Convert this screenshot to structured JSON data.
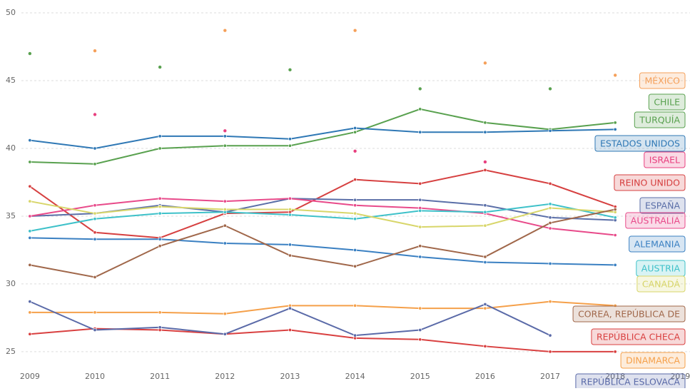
{
  "chart_data": {
    "type": "line",
    "x": [
      2009,
      2010,
      2011,
      2012,
      2013,
      2014,
      2015,
      2016,
      2017,
      2018
    ],
    "xlim": [
      2008.87,
      2019.15
    ],
    "xticks": [
      2009,
      2010,
      2011,
      2012,
      2013,
      2014,
      2015,
      2016,
      2017,
      2018,
      2019
    ],
    "ylim": [
      24.1,
      50.95
    ],
    "yticks": [
      25,
      30,
      35,
      40,
      45,
      50
    ],
    "grid": true,
    "series": [
      {
        "name": "MÉXICO",
        "color": "#f5a05a",
        "mode": "markers",
        "values": [
          null,
          47.2,
          null,
          48.7,
          null,
          48.7,
          null,
          46.3,
          null,
          45.4
        ]
      },
      {
        "name": "CHILE",
        "color": "#59a14f",
        "mode": "markers",
        "values": [
          47.0,
          null,
          46.0,
          null,
          45.8,
          null,
          44.4,
          null,
          44.4,
          null
        ]
      },
      {
        "name": "TURQUÍA",
        "color": "#59a14f",
        "mode": "lines",
        "values": [
          39.0,
          38.85,
          40.0,
          40.2,
          40.2,
          41.2,
          42.9,
          41.9,
          41.4,
          41.9
        ]
      },
      {
        "name": "ESTADOS UNIDOS",
        "color": "#2f78b5",
        "mode": "lines",
        "values": [
          40.6,
          40.0,
          40.9,
          40.9,
          40.7,
          41.5,
          41.2,
          41.2,
          41.3,
          41.4
        ]
      },
      {
        "name": "ISRAEL",
        "color": "#e8407f",
        "mode": "markers",
        "values": [
          null,
          42.5,
          null,
          41.3,
          null,
          39.8,
          null,
          39.0,
          null,
          null
        ]
      },
      {
        "name": "REINO UNIDO",
        "color": "#d64040",
        "mode": "lines",
        "values": [
          37.2,
          33.8,
          33.4,
          35.2,
          35.3,
          37.7,
          37.4,
          38.4,
          37.4,
          35.7
        ]
      },
      {
        "name": "ESPAÑA",
        "color": "#5b6fa8",
        "mode": "lines",
        "values": [
          35.0,
          35.2,
          35.8,
          35.3,
          36.3,
          36.2,
          36.2,
          35.8,
          34.9,
          34.7
        ]
      },
      {
        "name": "AUSTRALIA",
        "color": "#e84a8a",
        "mode": "lines",
        "values": [
          35.0,
          35.8,
          36.3,
          36.1,
          36.3,
          35.8,
          35.6,
          35.2,
          34.1,
          33.6
        ]
      },
      {
        "name": "ALEMANIA",
        "color": "#3a80c2",
        "mode": "lines",
        "values": [
          33.4,
          33.3,
          33.3,
          33.0,
          32.9,
          32.5,
          32.0,
          31.6,
          31.5,
          31.4
        ]
      },
      {
        "name": "AUSTRIA",
        "color": "#3ec1c9",
        "mode": "lines",
        "values": [
          33.9,
          34.8,
          35.2,
          35.3,
          35.1,
          34.8,
          35.4,
          35.3,
          35.9,
          34.9
        ]
      },
      {
        "name": "CANADÁ",
        "color": "#d8d66a",
        "mode": "lines",
        "values": [
          36.1,
          35.2,
          35.7,
          35.5,
          35.5,
          35.2,
          34.2,
          34.3,
          35.6,
          35.3
        ]
      },
      {
        "name": "COREA, REPÚBLICA DE",
        "color": "#a0674a",
        "mode": "lines",
        "values": [
          31.4,
          30.5,
          32.8,
          34.3,
          32.1,
          31.3,
          32.8,
          32.0,
          34.5,
          35.5
        ]
      },
      {
        "name": "REPÚBLICA CHECA",
        "color": "#d94040",
        "mode": "lines",
        "values": [
          26.3,
          26.7,
          26.6,
          26.3,
          26.6,
          26.0,
          25.9,
          25.4,
          25.0,
          25.0
        ]
      },
      {
        "name": "DINAMARCA",
        "color": "#f5a04a",
        "mode": "lines",
        "values": [
          27.9,
          27.9,
          27.9,
          27.8,
          28.4,
          28.4,
          28.2,
          28.2,
          28.7,
          28.4
        ]
      },
      {
        "name": "REPÚBLICA ESLOVACA",
        "color": "#5a6aa8",
        "mode": "lines",
        "values": [
          28.7,
          26.6,
          26.8,
          26.3,
          28.2,
          26.2,
          26.6,
          28.5,
          26.2,
          null
        ]
      }
    ]
  }
}
